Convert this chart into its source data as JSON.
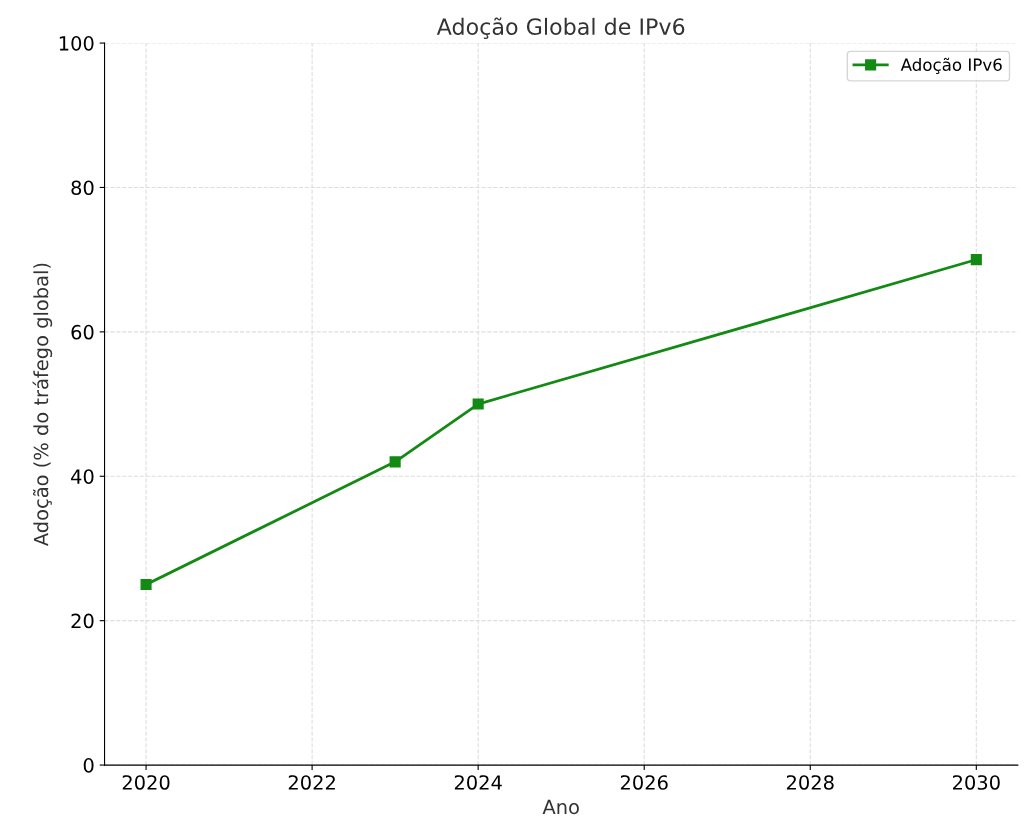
{
  "chart_data": {
    "type": "line",
    "title": "Adoção Global de IPv6",
    "xlabel": "Ano",
    "ylabel": "Adoção (% do tráfego global)",
    "x": [
      2020,
      2023,
      2024,
      2030
    ],
    "series": [
      {
        "name": "Adoção IPv6",
        "color": "#138a13",
        "values": [
          25,
          42,
          50,
          70
        ]
      }
    ],
    "xlim": [
      2019.5,
      2030.5
    ],
    "xticks": [
      2020,
      2022,
      2024,
      2026,
      2028,
      2030
    ],
    "ylim": [
      0,
      100
    ],
    "yticks": [
      0,
      20,
      40,
      60,
      80,
      100
    ],
    "grid": true,
    "legend": "top right",
    "marker": "square",
    "line_style": "solid"
  }
}
